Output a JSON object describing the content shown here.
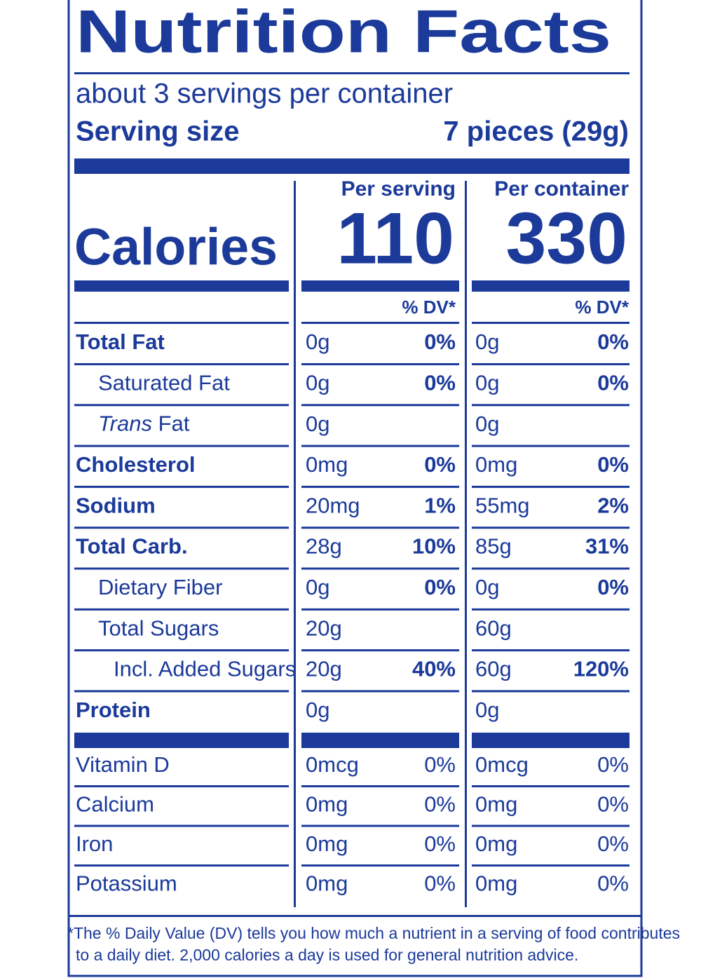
{
  "header": {
    "title": "Nutrition Facts",
    "servings": "about 3 servings per container",
    "serving_size_label": "Serving size",
    "serving_size": "7 pieces (29g)"
  },
  "columns": [
    "Per serving",
    "Per container"
  ],
  "calories": {
    "label": "Calories",
    "values": [
      "110",
      "330"
    ]
  },
  "dv_header": [
    "% DV*",
    "% DV*"
  ],
  "nutrients": [
    {
      "name": "Total Fat",
      "bold": true,
      "level": 0,
      "serving": [
        "0g",
        "0%"
      ],
      "container": [
        "0g",
        "0%"
      ]
    },
    {
      "name": "Saturated Fat",
      "bold": false,
      "level": 1,
      "serving": [
        "0g",
        "0%"
      ],
      "container": [
        "0g",
        "0%"
      ]
    },
    {
      "name": [
        "Trans",
        "Fat"
      ],
      "bold": false,
      "level": 1,
      "serving": [
        "0g"
      ],
      "container": [
        "0g"
      ]
    },
    {
      "name": "Cholesterol",
      "bold": true,
      "level": 0,
      "serving": [
        "0mg",
        "0%"
      ],
      "container": [
        "0mg",
        "0%"
      ]
    },
    {
      "name": "Sodium",
      "bold": true,
      "level": 0,
      "serving": [
        "20mg",
        "1%"
      ],
      "container": [
        "55mg",
        "2%"
      ]
    },
    {
      "name": "Total Carb.",
      "bold": true,
      "level": 0,
      "serving": [
        "28g",
        "10%"
      ],
      "container": [
        "85g",
        "31%"
      ]
    },
    {
      "name": "Dietary Fiber",
      "bold": false,
      "level": 1,
      "serving": [
        "0g",
        "0%"
      ],
      "container": [
        "0g",
        "0%"
      ]
    },
    {
      "name": "Total Sugars",
      "bold": false,
      "level": 1,
      "serving": [
        "20g"
      ],
      "container": [
        "60g"
      ]
    },
    {
      "name": "Incl. Added Sugars",
      "bold": false,
      "level": 2,
      "serving": [
        "20g",
        "40%"
      ],
      "container": [
        "60g",
        "120%"
      ]
    },
    {
      "name": "Protein",
      "bold": true,
      "level": 0,
      "serving": [
        "0g"
      ],
      "container": [
        "0g"
      ]
    }
  ],
  "vitamins": [
    {
      "name": "Vitamin D",
      "serving": [
        "0mcg",
        "0%"
      ],
      "container": [
        "0mcg",
        "0%"
      ]
    },
    {
      "name": "Calcium",
      "serving": [
        "0mg",
        "0%"
      ],
      "container": [
        "0mg",
        "0%"
      ]
    },
    {
      "name": "Iron",
      "serving": [
        "0mg",
        "0%"
      ],
      "container": [
        "0mg",
        "0%"
      ]
    },
    {
      "name": "Potassium",
      "serving": [
        "0mg",
        "0%"
      ],
      "container": [
        "0mg",
        "0%"
      ]
    }
  ],
  "footnote": [
    "*The % Daily Value (DV) tells you how much a nutrient in a serving of food contributes",
    "to a daily diet. 2,000 calories a day is used for general nutrition advice."
  ]
}
